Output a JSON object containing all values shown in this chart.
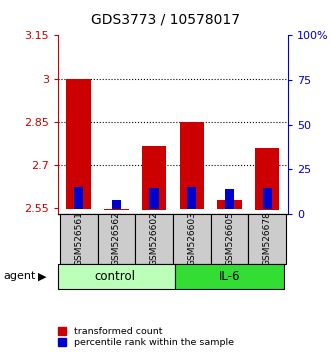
{
  "title": "GDS3773 / 10578017",
  "samples": [
    "GSM526561",
    "GSM526562",
    "GSM526602",
    "GSM526603",
    "GSM526605",
    "GSM526678"
  ],
  "red_bar_tops": [
    3.0,
    2.548,
    2.765,
    2.85,
    2.578,
    2.76
  ],
  "red_bar_bottoms": [
    2.548,
    2.545,
    2.545,
    2.548,
    2.548,
    2.545
  ],
  "blue_bar_tops": [
    2.625,
    2.578,
    2.622,
    2.625,
    2.618,
    2.622
  ],
  "blue_bar_bottoms": [
    2.548,
    2.548,
    2.548,
    2.548,
    2.548,
    2.548
  ],
  "ylim_left": [
    2.53,
    3.15
  ],
  "ylim_right": [
    0,
    100
  ],
  "yticks_left": [
    2.55,
    2.7,
    2.85,
    3.0,
    3.15
  ],
  "yticks_right": [
    0,
    25,
    50,
    75,
    100
  ],
  "ytick_labels_left": [
    "2.55",
    "2.7",
    "2.85",
    "3",
    "3.15"
  ],
  "ytick_labels_right": [
    "0",
    "25",
    "50",
    "75",
    "100%"
  ],
  "left_axis_color": "#cc0000",
  "right_axis_color": "#0000cc",
  "red_color": "#cc0000",
  "blue_color": "#0000cc",
  "control_color": "#bbffbb",
  "il6_color": "#33dd33",
  "sample_box_color": "#cccccc",
  "figsize": [
    3.31,
    3.54
  ],
  "dpi": 100
}
